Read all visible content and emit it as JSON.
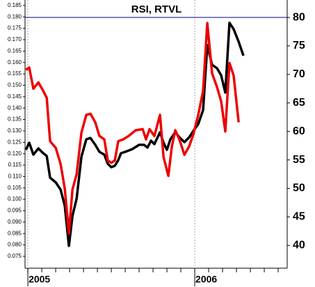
{
  "chart_data": {
    "type": "line",
    "title": "RSI, RTVL",
    "xlim": [
      2004.983,
      2006.554
    ],
    "xticks": [
      {
        "value": 2005,
        "label": "2005"
      },
      {
        "value": 2006,
        "label": "2006"
      }
    ],
    "ylim": [
      0.0698,
      0.1874
    ],
    "yticks": [
      {
        "value": 0.075,
        "label": "0.075"
      },
      {
        "value": 0.08,
        "label": "0.080"
      },
      {
        "value": 0.085,
        "label": "0.085"
      },
      {
        "value": 0.09,
        "label": "0.090"
      },
      {
        "value": 0.095,
        "label": "0.095"
      },
      {
        "value": 0.1,
        "label": "0.100"
      },
      {
        "value": 0.105,
        "label": "0.105"
      },
      {
        "value": 0.11,
        "label": "0.110"
      },
      {
        "value": 0.115,
        "label": "0.115"
      },
      {
        "value": 0.12,
        "label": "0.120"
      },
      {
        "value": 0.125,
        "label": "0.125"
      },
      {
        "value": 0.13,
        "label": "0.130"
      },
      {
        "value": 0.135,
        "label": "0.135"
      },
      {
        "value": 0.14,
        "label": "0.140"
      },
      {
        "value": 0.145,
        "label": "0.145"
      },
      {
        "value": 0.15,
        "label": "0.150"
      },
      {
        "value": 0.155,
        "label": "0.155"
      },
      {
        "value": 0.16,
        "label": "0.160"
      },
      {
        "value": 0.165,
        "label": "0.165"
      },
      {
        "value": 0.17,
        "label": "0.170"
      },
      {
        "value": 0.175,
        "label": "0.175"
      },
      {
        "value": 0.18,
        "label": "0.180"
      },
      {
        "value": 0.185,
        "label": "0.185"
      }
    ],
    "y2lim": [
      36,
      83.06
    ],
    "y2ticks": [
      40,
      45,
      50,
      55,
      60,
      65,
      70,
      75,
      80
    ],
    "reference_lines": [
      {
        "axis": "y2",
        "value": 80,
        "color": "#000080"
      }
    ],
    "series": [
      {
        "color": "#000000",
        "axis": "y",
        "x": [
          2004.988,
          2005.008,
          2005.033,
          2005.063,
          2005.092,
          2005.113,
          2005.133,
          2005.167,
          2005.196,
          2005.221,
          2005.246,
          2005.267,
          2005.292,
          2005.321,
          2005.35,
          2005.375,
          2005.404,
          2005.429,
          2005.458,
          2005.479,
          2005.5,
          2005.521,
          2005.542,
          2005.558,
          2005.583,
          2005.625,
          2005.667,
          2005.696,
          2005.717,
          2005.738,
          2005.758,
          2005.792,
          2005.813,
          2005.833,
          2005.854,
          2005.883,
          2005.908,
          2005.938,
          2005.967,
          2005.992,
          2006.021,
          2006.05,
          2006.075,
          2006.104,
          2006.133,
          2006.158,
          2006.183,
          2006.208,
          2006.233,
          2006.263,
          2006.292
        ],
        "values": [
          0.1217,
          0.1248,
          0.1196,
          0.1223,
          0.1202,
          0.119,
          0.1095,
          0.1074,
          0.1043,
          0.0973,
          0.0796,
          0.0927,
          0.1003,
          0.1187,
          0.1263,
          0.1269,
          0.1239,
          0.1208,
          0.1196,
          0.1156,
          0.1141,
          0.1147,
          0.1172,
          0.1202,
          0.1208,
          0.122,
          0.1239,
          0.1239,
          0.1227,
          0.1257,
          0.1242,
          0.1294,
          0.1248,
          0.1217,
          0.1263,
          0.1294,
          0.1272,
          0.1251,
          0.1272,
          0.13,
          0.133,
          0.1392,
          0.1676,
          0.159,
          0.1575,
          0.1544,
          0.1468,
          0.1774,
          0.1746,
          0.1691,
          0.163
        ]
      },
      {
        "color": "#ee0000",
        "axis": "y2",
        "x": [
          2004.988,
          2005.008,
          2005.033,
          2005.063,
          2005.092,
          2005.113,
          2005.133,
          2005.167,
          2005.196,
          2005.221,
          2005.246,
          2005.267,
          2005.292,
          2005.321,
          2005.35,
          2005.375,
          2005.404,
          2005.429,
          2005.458,
          2005.479,
          2005.5,
          2005.521,
          2005.542,
          2005.571,
          2005.604,
          2005.646,
          2005.688,
          2005.708,
          2005.729,
          2005.758,
          2005.792,
          2005.813,
          2005.842,
          2005.863,
          2005.883,
          2005.908,
          2005.938,
          2005.967,
          2005.992,
          2006.021,
          2006.05,
          2006.075,
          2006.104,
          2006.133,
          2006.158,
          2006.183,
          2006.208,
          2006.233,
          2006.263
        ],
        "values": [
          70.8,
          71.2,
          67.5,
          68.6,
          67.1,
          65.9,
          58.3,
          57.1,
          54.3,
          50.0,
          42.1,
          49.8,
          52.5,
          59.8,
          62.9,
          63.1,
          61.6,
          59.2,
          58.6,
          54.9,
          54.5,
          54.9,
          58.3,
          58.6,
          59.2,
          60.2,
          60.4,
          58.6,
          60.4,
          59.2,
          62.9,
          55.5,
          52.2,
          57.4,
          60.2,
          58.6,
          55.9,
          57.4,
          59.5,
          62.9,
          67.1,
          79.0,
          70.2,
          67.8,
          65.3,
          60.0,
          72.0,
          69.8,
          61.6
        ]
      }
    ]
  }
}
